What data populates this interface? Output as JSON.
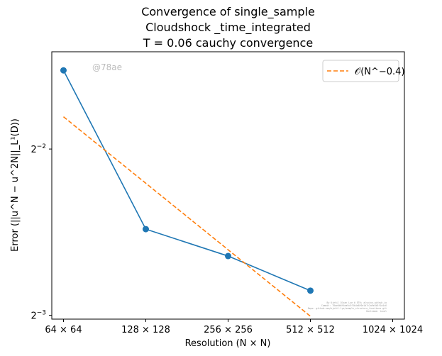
{
  "chart_data": {
    "type": "line",
    "title_lines": [
      "Convergence of single_sample",
      "Cloudshock _time_integrated",
      "T = 0.06 cauchy convergence"
    ],
    "xlabel": "Resolution (N × N)",
    "ylabel": "Error (||u^N − u^2N||_L¹(D))",
    "x_scale": "log2",
    "y_scale": "log2",
    "xlim": [
      58,
      1130
    ],
    "ylim": [
      0.123,
      0.375
    ],
    "x_ticks": [
      64,
      128,
      256,
      512,
      1024
    ],
    "x_tick_labels": [
      "64 × 64",
      "128 × 128",
      "256 × 256",
      "512 × 512",
      "1024 × 1024"
    ],
    "y_ticks": [
      0.125,
      0.25
    ],
    "y_tick_labels": [
      {
        "base": "2",
        "exp": "−3"
      },
      {
        "base": "2",
        "exp": "−2"
      }
    ],
    "grid": false,
    "legend_position": "top-right",
    "series": [
      {
        "x": [
          64,
          128,
          256,
          512
        ],
        "y": [
          0.347,
          0.179,
          0.16,
          0.1385
        ],
        "color": "#1f77b4",
        "style": "solid",
        "markers": true
      },
      {
        "name": "𝒪(N^−0.4)",
        "x": [
          64,
          512
        ],
        "y": [
          0.286,
          0.1245
        ],
        "color": "#ff7f0e",
        "style": "dashed",
        "markers": false
      }
    ],
    "watermark": "@78ae"
  }
}
